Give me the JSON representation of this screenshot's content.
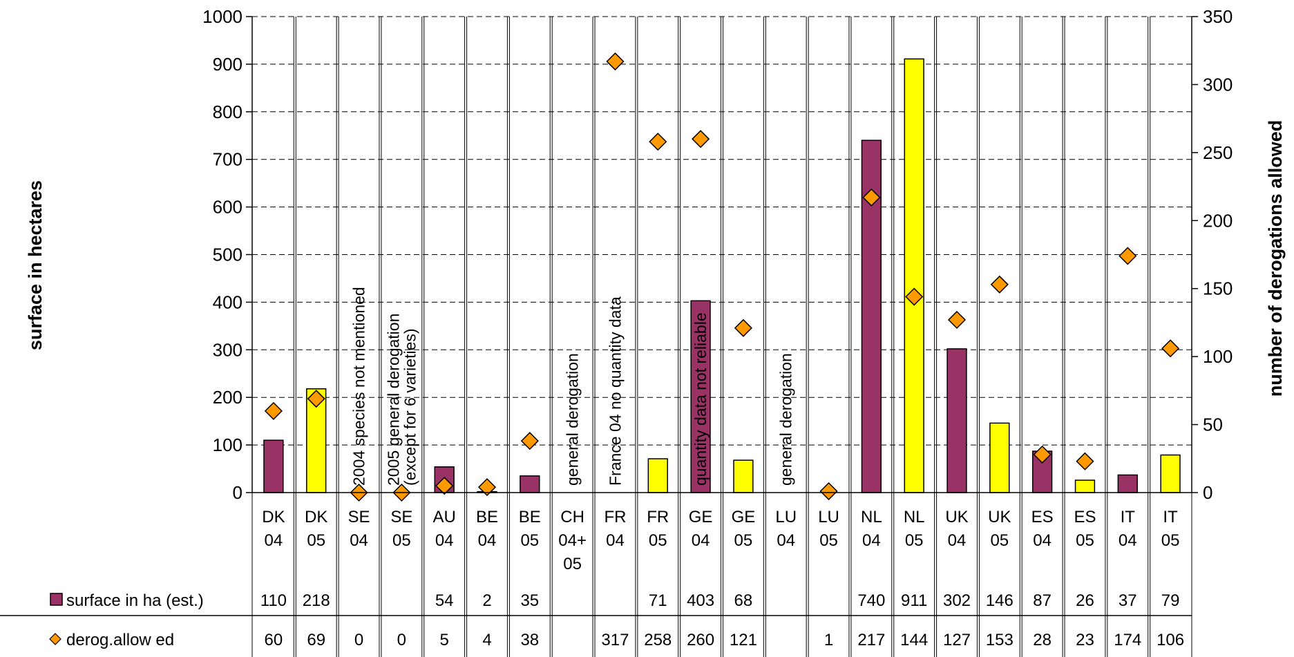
{
  "chart_data": {
    "type": "bar",
    "categories": [
      [
        "DK",
        "04"
      ],
      [
        "DK",
        "05"
      ],
      [
        "SE",
        "04"
      ],
      [
        "SE",
        "05"
      ],
      [
        "AU",
        "04"
      ],
      [
        "BE",
        "04"
      ],
      [
        "BE",
        "05"
      ],
      [
        "CH",
        "04+",
        "05"
      ],
      [
        "FR",
        "04"
      ],
      [
        "FR",
        "05"
      ],
      [
        "GE",
        "04"
      ],
      [
        "GE",
        "05"
      ],
      [
        "LU",
        "04"
      ],
      [
        "LU",
        "05"
      ],
      [
        "NL",
        "04"
      ],
      [
        "NL",
        "05"
      ],
      [
        "UK",
        "04"
      ],
      [
        "UK",
        "05"
      ],
      [
        "ES",
        "04"
      ],
      [
        "ES",
        "05"
      ],
      [
        "IT",
        "04"
      ],
      [
        "IT",
        "05"
      ]
    ],
    "series": [
      {
        "name": "surface in ha (est.)",
        "axis": "left",
        "kind": "bar",
        "values": [
          110,
          218,
          null,
          null,
          54,
          2,
          35,
          null,
          null,
          71,
          403,
          68,
          null,
          null,
          740,
          911,
          302,
          146,
          87,
          26,
          37,
          79
        ],
        "labels": [
          "110",
          "218",
          "",
          "",
          "54",
          "2",
          "35",
          "",
          "",
          "71",
          "403",
          "68",
          "",
          "",
          "740",
          "911",
          "302",
          "146",
          "87",
          "26",
          "37",
          "79"
        ]
      },
      {
        "name": "derog.allow ed",
        "axis": "right",
        "kind": "marker",
        "values": [
          60,
          69,
          0,
          0,
          5,
          4,
          38,
          null,
          317,
          258,
          260,
          121,
          null,
          1,
          217,
          144,
          127,
          153,
          28,
          23,
          174,
          106
        ],
        "labels": [
          "60",
          "69",
          "0",
          "0",
          "5",
          "4",
          "38",
          "",
          "317",
          "258",
          "260",
          "121",
          "",
          "1",
          "217",
          "144",
          "127",
          "153",
          "28",
          "23",
          "174",
          "106"
        ]
      }
    ],
    "bar_colors": [
      "#993366",
      "#ffff00"
    ],
    "marker_color": "#ff9900",
    "ylabel": "surface in hectares",
    "y2label": "number of derogations allowed",
    "ylim": [
      0,
      1000
    ],
    "y2lim": [
      0,
      350
    ],
    "yticks": [
      "0",
      "100",
      "200",
      "300",
      "400",
      "500",
      "600",
      "700",
      "800",
      "900",
      "1000"
    ],
    "y2ticks": [
      "0",
      "50",
      "100",
      "150",
      "200",
      "250",
      "300",
      "350"
    ],
    "grid": "horizontal dashed",
    "annotations": [
      {
        "category_index": 2,
        "lines": [
          "2004 species not mentioned"
        ]
      },
      {
        "category_index": 3,
        "lines": [
          "2005 general derogation",
          "(except for 6 varieties)"
        ]
      },
      {
        "category_index": 7,
        "lines": [
          "general derogation"
        ]
      },
      {
        "category_index": 8,
        "lines": [
          "France 04 no quantity data"
        ]
      },
      {
        "category_index": 10,
        "lines": [
          "quantity data not reliable"
        ]
      },
      {
        "category_index": 12,
        "lines": [
          "general derogation"
        ]
      }
    ]
  }
}
